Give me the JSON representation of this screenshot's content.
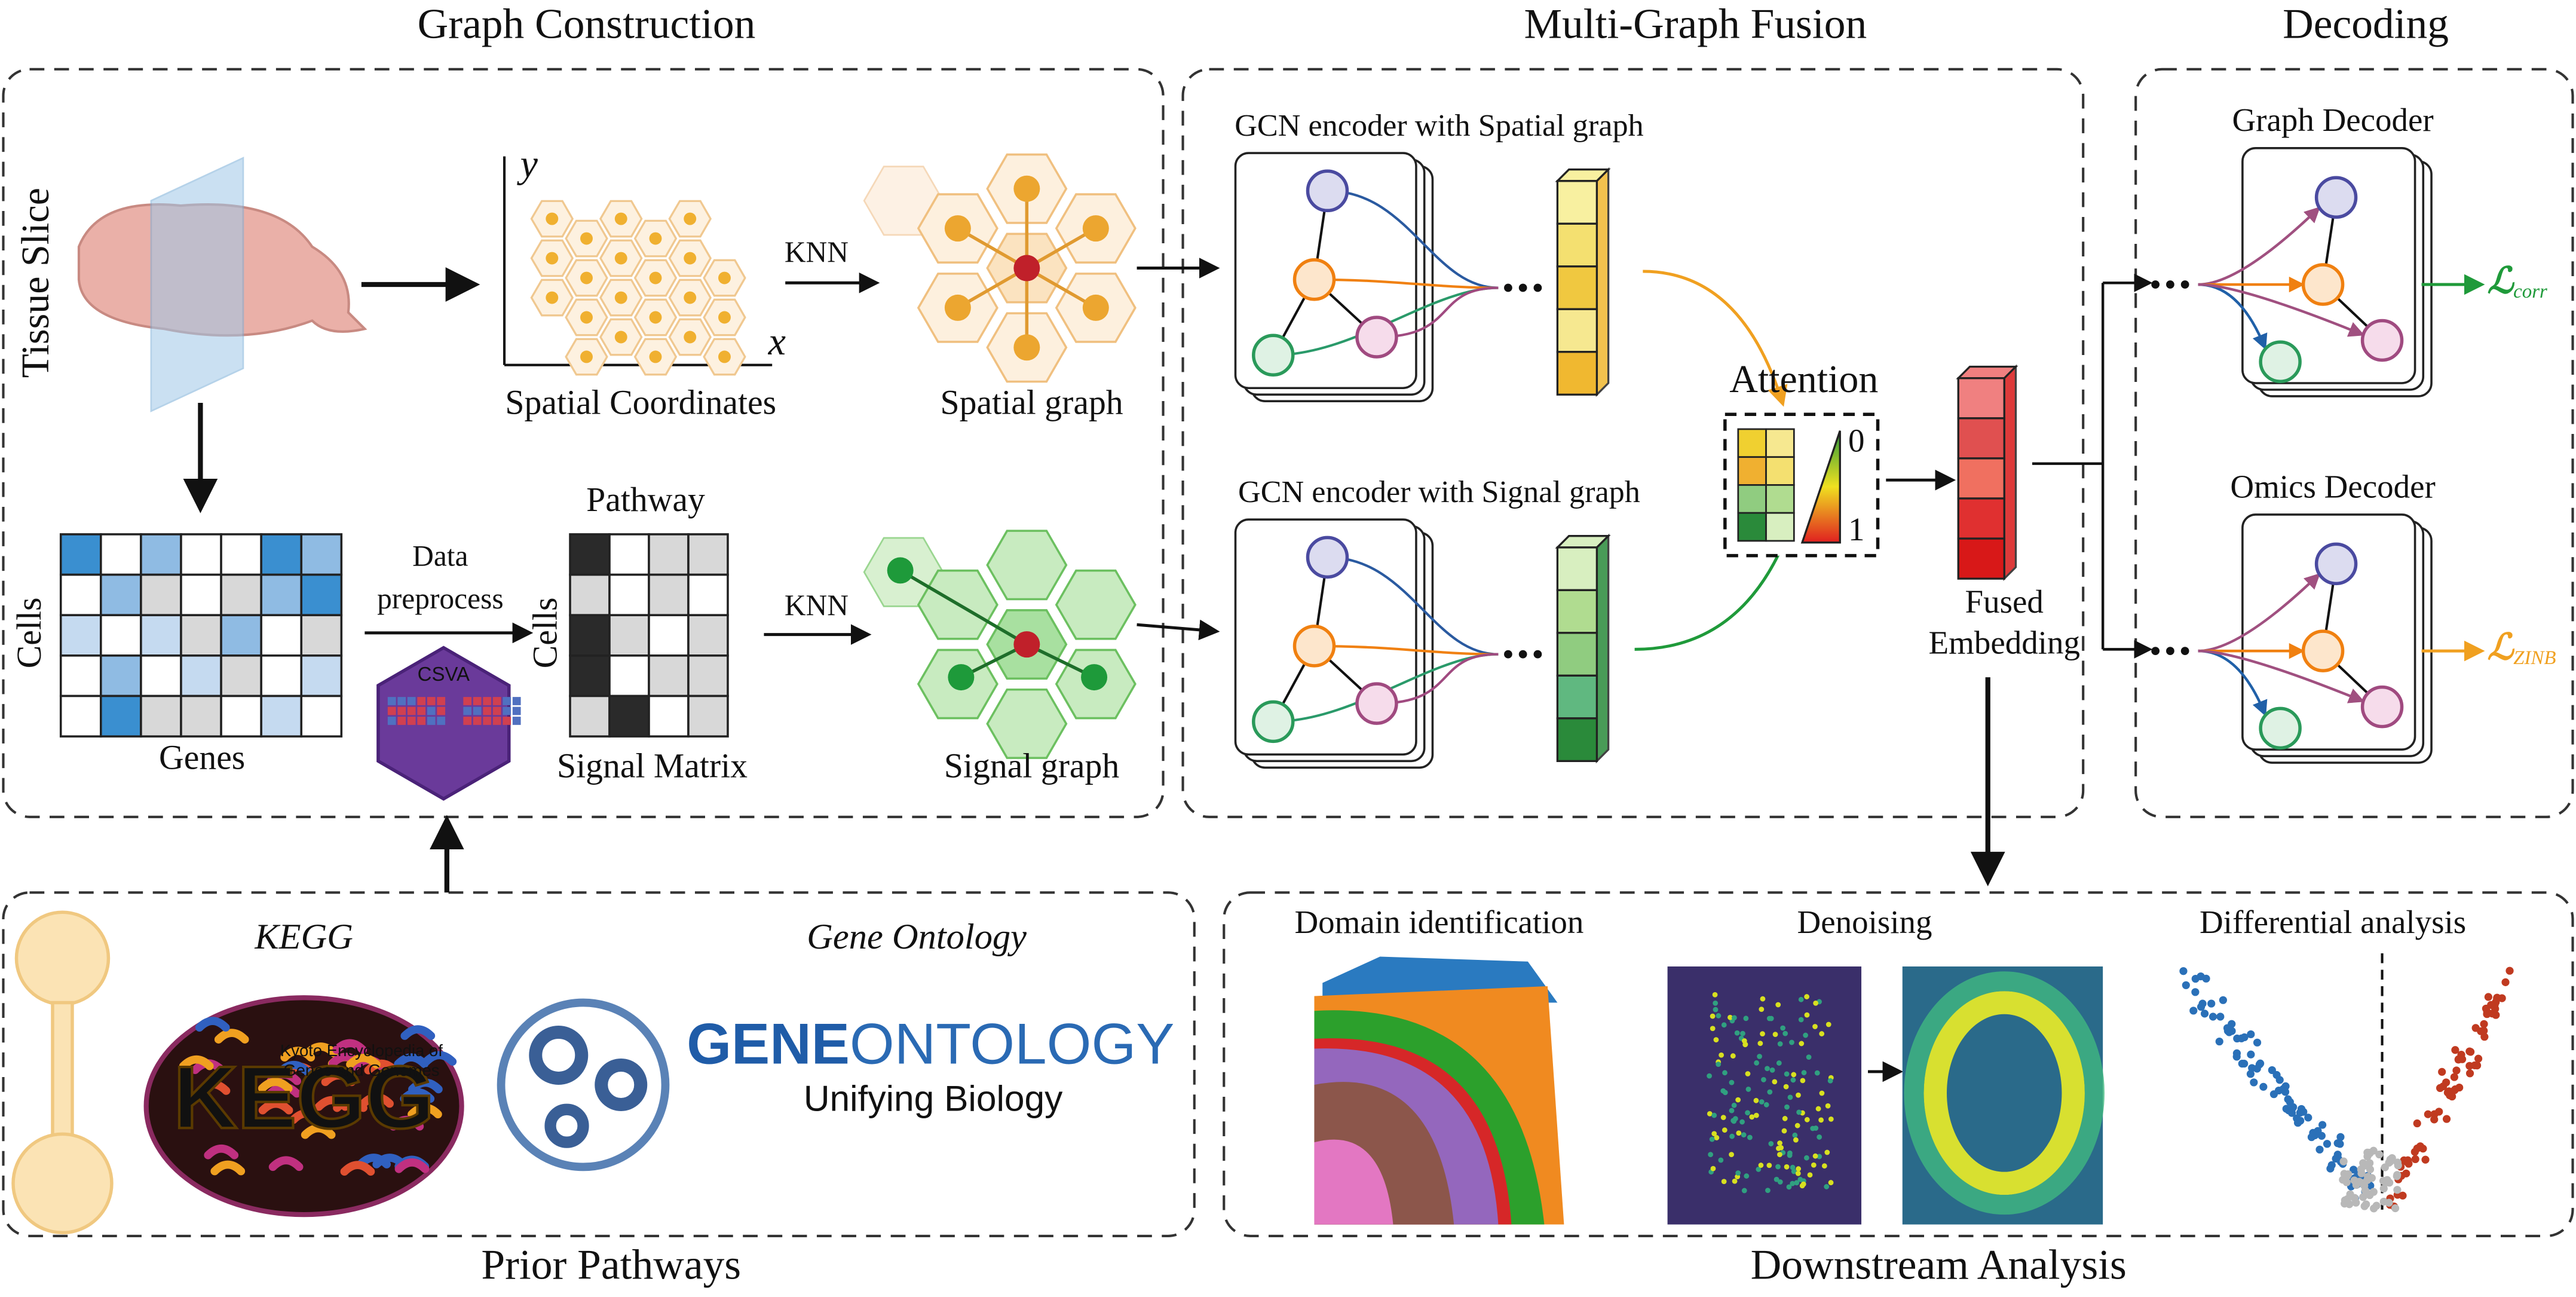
{
  "sections": {
    "graph_construction": "Graph Construction",
    "multi_graph_fusion": "Multi-Graph Fusion",
    "decoding": "Decoding",
    "prior_pathways": "Prior Pathways",
    "downstream_analysis": "Downstream Analysis"
  },
  "graph_construction": {
    "tissue_slice": "Tissue Slice",
    "spatial_coordinates": "Spatial Coordinates",
    "axis_y": "y",
    "axis_x": "x",
    "knn_spatial": "KNN",
    "spatial_graph": "Spatial graph",
    "cells_matrix_rows": "Cells",
    "genes": "Genes",
    "data_preprocess": [
      "Data",
      "preprocess"
    ],
    "csva": "CSVA",
    "pathway": "Pathway",
    "cells_signal_rows": "Cells",
    "signal_matrix": "Signal Matrix",
    "knn_signal": "KNN",
    "signal_graph": "Signal graph"
  },
  "fusion": {
    "spatial_encoder": "GCN encoder with Spatial graph",
    "signal_encoder": "GCN encoder with Signal graph",
    "attention": "Attention",
    "scale_min": 0,
    "scale_max": 1,
    "fused_embedding": [
      "Fused",
      "Embedding"
    ]
  },
  "decoding": {
    "graph_decoder": "Graph Decoder",
    "omics_decoder": "Omics Decoder",
    "loss_corr": {
      "symbol": "ℒ",
      "subscript": "corr"
    },
    "loss_zinb": {
      "symbol": "ℒ",
      "subscript": "ZINB"
    }
  },
  "prior": {
    "kegg_label": "KEGG",
    "kegg_logo": "KEGG",
    "kegg_caption": [
      "Kyoto Encyclopedia of",
      "Genes and Genomes"
    ],
    "go_label": "Gene Ontology",
    "go_logo_gene": "GENE",
    "go_logo_ontology": "ONTOLOGY",
    "go_tagline": "Unifying Biology"
  },
  "downstream": {
    "domain": "Domain identification",
    "denoising": "Denoising",
    "differential": "Differential analysis"
  }
}
